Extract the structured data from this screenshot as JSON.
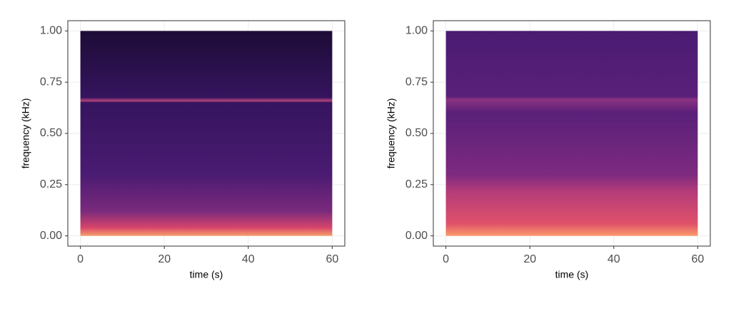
{
  "chart_data": [
    {
      "type": "spectrogram",
      "xlabel": "time (s)",
      "ylabel": "frequency (kHz)",
      "xlim": [
        -3,
        63
      ],
      "ylim": [
        -0.05,
        1.05
      ],
      "xticks": [
        0,
        20,
        40,
        60
      ],
      "yticks": [
        {
          "value": 0,
          "label": "0.00"
        },
        {
          "value": 0.25,
          "label": "0.25"
        },
        {
          "value": 0.5,
          "label": "0.50"
        },
        {
          "value": 0.75,
          "label": "0.75"
        },
        {
          "value": 1,
          "label": "1.00"
        }
      ],
      "grid": true
    },
    {
      "type": "spectrogram",
      "xlabel": "time (s)",
      "ylabel": "frequency (kHz)",
      "xlim": [
        -3,
        63
      ],
      "ylim": [
        -0.05,
        1.05
      ],
      "xticks": [
        0,
        20,
        40,
        60
      ],
      "yticks": [
        {
          "value": 0,
          "label": "0.00"
        },
        {
          "value": 0.25,
          "label": "0.25"
        },
        {
          "value": 0.5,
          "label": "0.50"
        },
        {
          "value": 0.75,
          "label": "0.75"
        },
        {
          "value": 1,
          "label": "1.00"
        }
      ],
      "grid": true
    }
  ]
}
